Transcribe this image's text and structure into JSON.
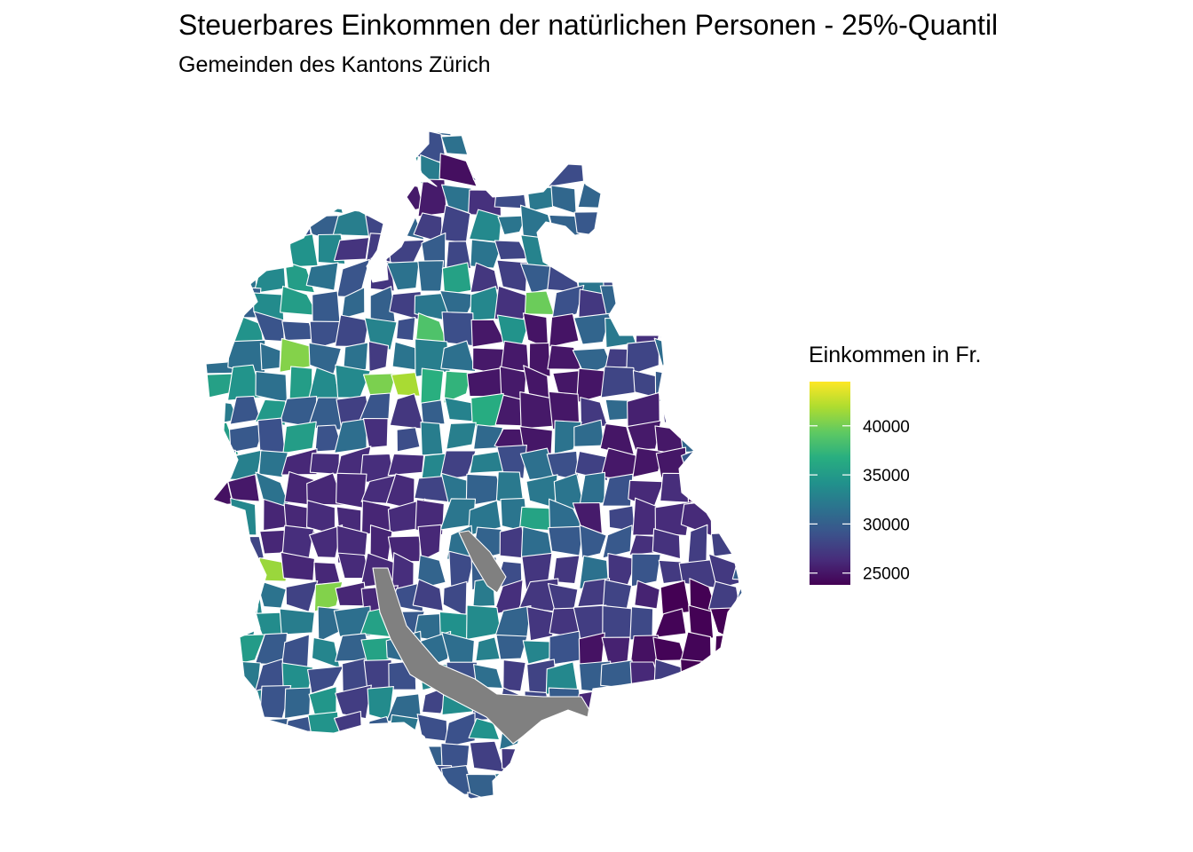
{
  "title": "Steuerbares Einkommen der natürlichen Personen - 25%-Quantil",
  "subtitle": "Gemeinden des Kantons Zürich",
  "legend": {
    "title": "Einkommen in Fr.",
    "min": 23800,
    "max": 44500,
    "ticks": [
      {
        "value": 25000,
        "label": "25000"
      },
      {
        "value": 30000,
        "label": "30000"
      },
      {
        "value": 35000,
        "label": "35000"
      },
      {
        "value": 40000,
        "label": "40000"
      }
    ],
    "colors": [
      "#440154",
      "#472d7b",
      "#3b528b",
      "#2c728e",
      "#21918c",
      "#28ae80",
      "#5ec962",
      "#addc30",
      "#fde725"
    ],
    "na_color": "#808080"
  }
}
